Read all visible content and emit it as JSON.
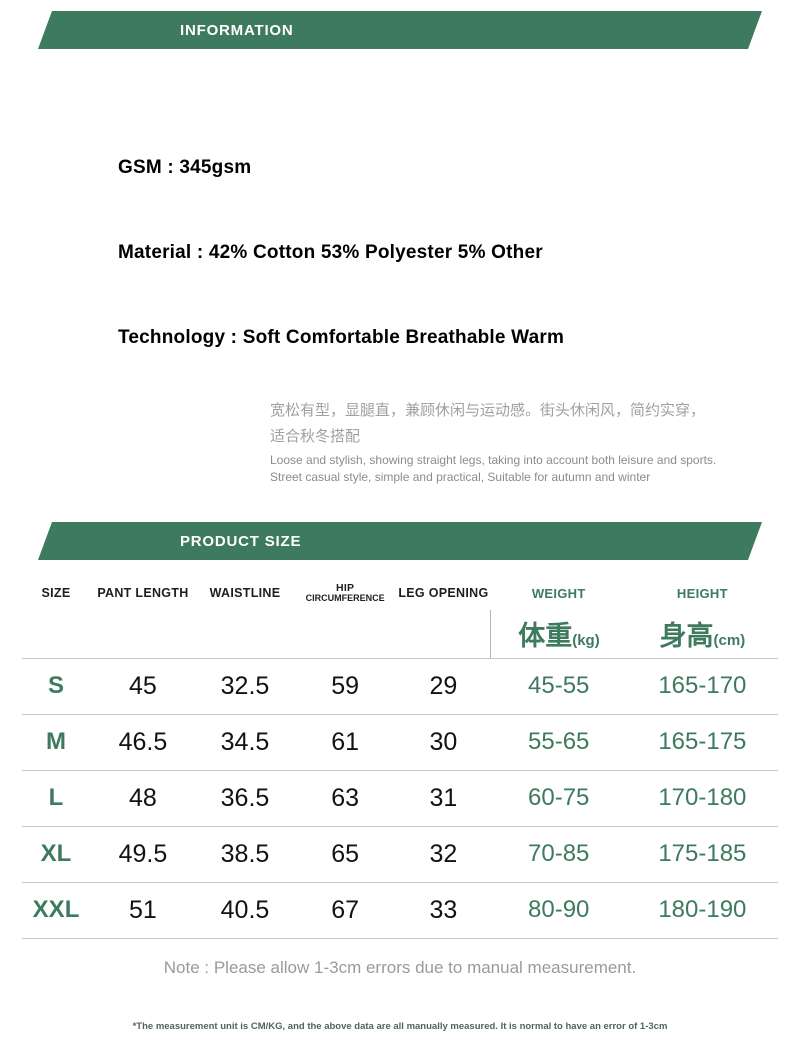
{
  "banners": {
    "information": "INFORMATION",
    "product_size": "PRODUCT SIZE"
  },
  "specs": {
    "gsm": "GSM : 345gsm",
    "material": "Material : 42% Cotton 53% Polyester 5% Other",
    "technology": "Technology : Soft Comfortable Breathable Warm"
  },
  "description": {
    "zh_line1": "宽松有型，显腿直，兼顾休闲与运动感。街头休闲风，简约实穿，",
    "zh_line2": "适合秋冬搭配",
    "en": "Loose and stylish, showing straight legs, taking into account both leisure and sports. Street casual style, simple and practical, Suitable for autumn and winter"
  },
  "size_table": {
    "headers": {
      "size": "SIZE",
      "pant_length": "PANT LENGTH",
      "waistline": "WAISTLINE",
      "hip_line1": "HIP",
      "hip_line2": "CIRCUMFERENCE",
      "leg_opening": "LEG OPENING",
      "weight": "WEIGHT",
      "height": "HEIGHT",
      "weight_cn": "体重",
      "weight_unit": "(kg)",
      "height_cn": "身高",
      "height_unit": "(cm)"
    },
    "rows": [
      {
        "size": "S",
        "pant_length": "45",
        "waistline": "32.5",
        "hip": "59",
        "leg_opening": "29",
        "weight": "45-55",
        "height": "165-170"
      },
      {
        "size": "M",
        "pant_length": "46.5",
        "waistline": "34.5",
        "hip": "61",
        "leg_opening": "30",
        "weight": "55-65",
        "height": "165-175"
      },
      {
        "size": "L",
        "pant_length": "48",
        "waistline": "36.5",
        "hip": "63",
        "leg_opening": "31",
        "weight": "60-75",
        "height": "170-180"
      },
      {
        "size": "XL",
        "pant_length": "49.5",
        "waistline": "38.5",
        "hip": "65",
        "leg_opening": "32",
        "weight": "70-85",
        "height": "175-185"
      },
      {
        "size": "XXL",
        "pant_length": "51",
        "waistline": "40.5",
        "hip": "67",
        "leg_opening": "33",
        "weight": "80-90",
        "height": "180-190"
      }
    ]
  },
  "note": "Note : Please allow 1-3cm errors due to manual measurement.",
  "footnote": "*The measurement unit is CM/KG, and the above data are all manually measured. It is normal to have an error of 1-3cm",
  "colors": {
    "banner_green": "#3E7A5E",
    "accent_green": "#3E7A5E",
    "muted_gray": "#9a9a9a"
  }
}
